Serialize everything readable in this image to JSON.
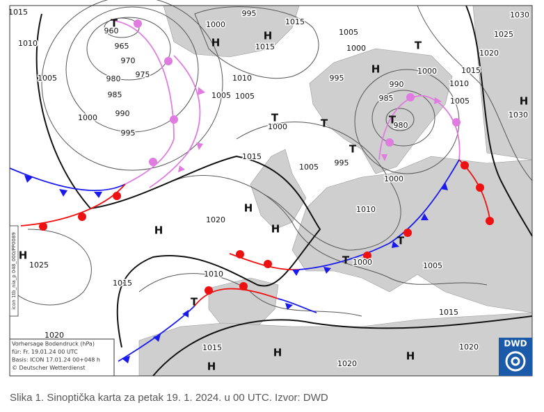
{
  "map": {
    "isobar_labels": [
      "1015",
      "995",
      "1015",
      "1030",
      "960",
      "1000",
      "1010",
      "965",
      "1015",
      "1005",
      "1025",
      "970",
      "1000",
      "1020",
      "1005",
      "975",
      "980",
      "1010",
      "995",
      "1000",
      "1015",
      "985",
      "1005",
      "1005",
      "990",
      "1010",
      "1000",
      "990",
      "985",
      "1005",
      "995",
      "1030",
      "980",
      "1000",
      "1015",
      "1005",
      "995",
      "1000",
      "1020",
      "1010",
      "1025",
      "1015",
      "1010",
      "1000",
      "1005",
      "1015",
      "1020",
      "1015",
      "1020",
      "1020"
    ],
    "centers": [
      "T",
      "H",
      "H",
      "T",
      "H",
      "H",
      "T",
      "T",
      "T",
      "T",
      "H",
      "H",
      "H",
      "H",
      "T",
      "T",
      "T",
      "H",
      "H",
      "H"
    ],
    "legend": [
      "Vorhersage Bodendruck (hPa)",
      "für:  Fr. 19.01.24  00 UTC",
      "Basis: ICON  17.01.24 00+048 h",
      "© Deutscher Wetterdienst"
    ],
    "side_text": "icon 1tb_nia_p 048_000/PP0089",
    "logo": "DWD"
  },
  "caption": "Slika 1. Sinoptička karta za petak 19. 1. 2024. u 00 UTC. Izvor: DWD"
}
